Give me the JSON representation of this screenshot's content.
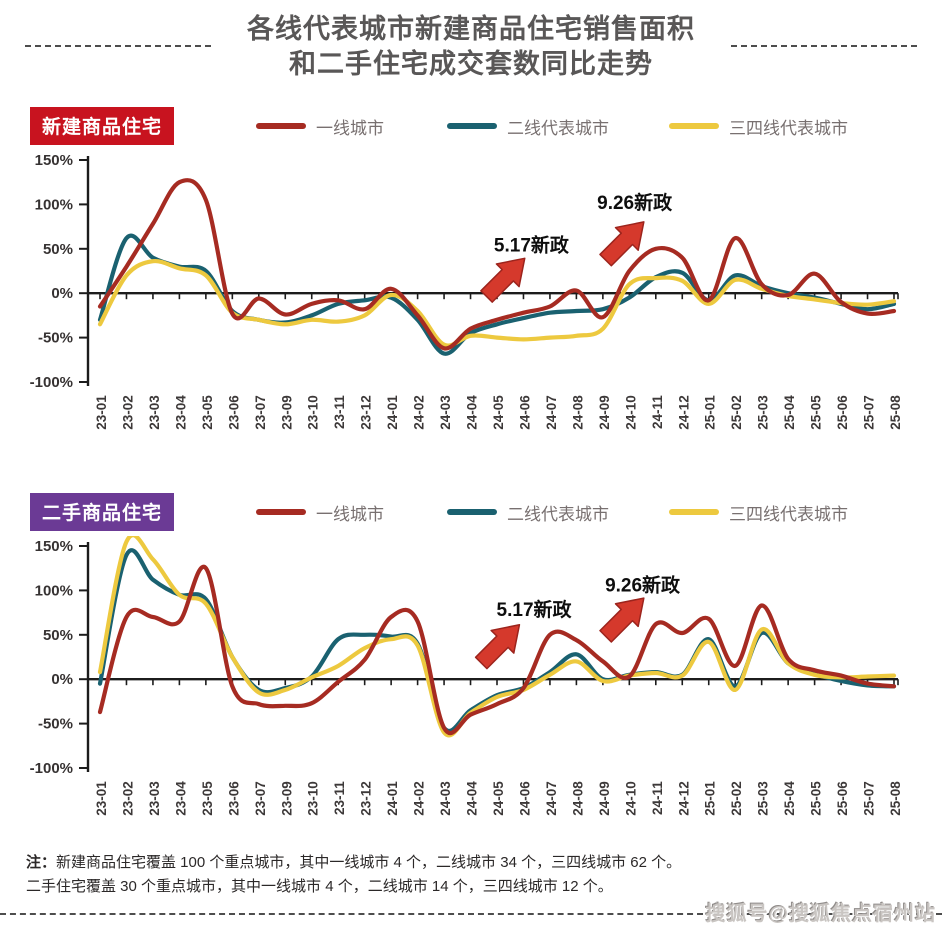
{
  "title": {
    "line1": "各线代表城市新建商品住宅销售面积",
    "line2": "和二手住宅成交套数同比走势"
  },
  "note": {
    "prefix": "注：",
    "line1": "新建商品住宅覆盖 100 个重点城市，其中一线城市 4 个，二线城市 34 个，三四线城市 62 个。",
    "line2": "二手住宅覆盖 30 个重点城市，其中一线城市 4 个，二线城市 14 个，三四线城市 12 个。"
  },
  "watermark": "搜狐号@搜狐焦点宿州站",
  "colors": {
    "tier1_red": "#A62B22",
    "tier2_teal": "#1A6170",
    "tier3_yellow": "#EDC93F",
    "arrow_red": "#D5392C",
    "arrow_edge": "#9C241D",
    "axis_black": "#1c1c1c",
    "badge_new_red": "#C8131F",
    "badge_old_purple": "#6B3A95",
    "title_gray": "#595757"
  },
  "chart_data": [
    {
      "id": "new-commodity-housing",
      "type": "line",
      "badge": "新建商品住宅",
      "badge_color": "#C8131F",
      "ylim": [
        -100,
        150
      ],
      "y_axis": {
        "labels": [
          "150%",
          "100%",
          "50%",
          "0%",
          "-50%",
          "-100%"
        ],
        "values": [
          150,
          100,
          50,
          0,
          -50,
          -100
        ]
      },
      "categories": [
        "23-01",
        "23-02",
        "23-03",
        "23-04",
        "23-05",
        "23-06",
        "23-07",
        "23-09",
        "23-10",
        "23-11",
        "23-12",
        "24-01",
        "24-02",
        "24-03",
        "24-04",
        "24-05",
        "24-06",
        "24-07",
        "24-08",
        "24-09",
        "24-10",
        "24-11",
        "24-12",
        "25-01",
        "25-02",
        "25-03",
        "25-04",
        "25-05",
        "25-06",
        "25-07",
        "25-08"
      ],
      "series": [
        {
          "name": "一线城市",
          "color": "#A62B22",
          "values": [
            -15,
            30,
            78,
            125,
            105,
            -23,
            -6,
            -24,
            -12,
            -8,
            -18,
            5,
            -25,
            -62,
            -40,
            -30,
            -22,
            -15,
            3,
            -27,
            25,
            50,
            40,
            -8,
            62,
            10,
            -2,
            22,
            -10,
            -23,
            -20
          ]
        },
        {
          "name": "二线代表城市",
          "color": "#1A6170",
          "values": [
            -30,
            62,
            40,
            30,
            25,
            -20,
            -30,
            -33,
            -25,
            -12,
            -8,
            -5,
            -30,
            -68,
            -45,
            -35,
            -28,
            -22,
            -20,
            -18,
            -5,
            18,
            23,
            -8,
            20,
            8,
            0,
            -5,
            -12,
            -18,
            -12
          ]
        },
        {
          "name": "三四线代表城市",
          "color": "#EDC93F",
          "values": [
            -35,
            20,
            36,
            28,
            20,
            -22,
            -30,
            -35,
            -30,
            -32,
            -25,
            -2,
            -20,
            -58,
            -48,
            -50,
            -52,
            -50,
            -48,
            -40,
            10,
            17,
            14,
            -12,
            15,
            5,
            -3,
            -7,
            -11,
            -13,
            -9
          ]
        }
      ],
      "annotations": [
        {
          "label": "5.17新政",
          "text_month": 16.3,
          "text_value": 47,
          "arrow_month": 15.3,
          "arrow_value": 17
        },
        {
          "label": "9.26新政",
          "text_month": 20.2,
          "text_value": 95,
          "arrow_month": 19.8,
          "arrow_value": 58
        }
      ]
    },
    {
      "id": "secondhand-commodity-housing",
      "type": "line",
      "badge": "二手商品住宅",
      "badge_color": "#6B3A95",
      "ylim": [
        -100,
        150
      ],
      "y_axis": {
        "labels": [
          "150%",
          "100%",
          "50%",
          "0%",
          "-50%",
          "-100%"
        ],
        "values": [
          150,
          100,
          50,
          0,
          -50,
          -100
        ]
      },
      "categories": [
        "23-01",
        "23-02",
        "23-03",
        "23-04",
        "23-05",
        "23-06",
        "23-07",
        "23-09",
        "23-10",
        "23-11",
        "23-12",
        "24-01",
        "24-02",
        "24-03",
        "24-04",
        "24-05",
        "24-06",
        "24-07",
        "24-08",
        "24-09",
        "24-10",
        "24-11",
        "24-12",
        "25-01",
        "25-02",
        "25-03",
        "25-04",
        "25-05",
        "25-06",
        "25-07",
        "25-08"
      ],
      "series": [
        {
          "name": "一线城市",
          "color": "#A62B22",
          "values": [
            -37,
            70,
            70,
            65,
            125,
            -8,
            -28,
            -30,
            -27,
            -3,
            22,
            70,
            65,
            -55,
            -40,
            -28,
            -10,
            50,
            44,
            20,
            3,
            62,
            52,
            68,
            15,
            83,
            23,
            10,
            4,
            -5,
            -8
          ]
        },
        {
          "name": "二线代表城市",
          "color": "#1A6170",
          "values": [
            -5,
            140,
            112,
            95,
            90,
            25,
            -12,
            -10,
            3,
            45,
            50,
            48,
            40,
            -55,
            -35,
            -18,
            -10,
            8,
            28,
            0,
            5,
            8,
            5,
            45,
            -8,
            52,
            18,
            6,
            -2,
            -7,
            -8
          ]
        },
        {
          "name": "三四线代表城市",
          "color": "#EDC93F",
          "values": [
            8,
            155,
            135,
            95,
            85,
            25,
            -15,
            -12,
            2,
            15,
            35,
            45,
            38,
            -60,
            -38,
            -20,
            -12,
            5,
            20,
            -2,
            4,
            7,
            4,
            42,
            -12,
            56,
            18,
            5,
            2,
            3,
            4
          ]
        }
      ],
      "annotations": [
        {
          "label": "5.17新政",
          "text_month": 16.4,
          "text_value": 71,
          "arrow_month": 15.1,
          "arrow_value": 39
        },
        {
          "label": "9.26新政",
          "text_month": 20.5,
          "text_value": 99,
          "arrow_month": 19.8,
          "arrow_value": 69
        }
      ]
    }
  ]
}
